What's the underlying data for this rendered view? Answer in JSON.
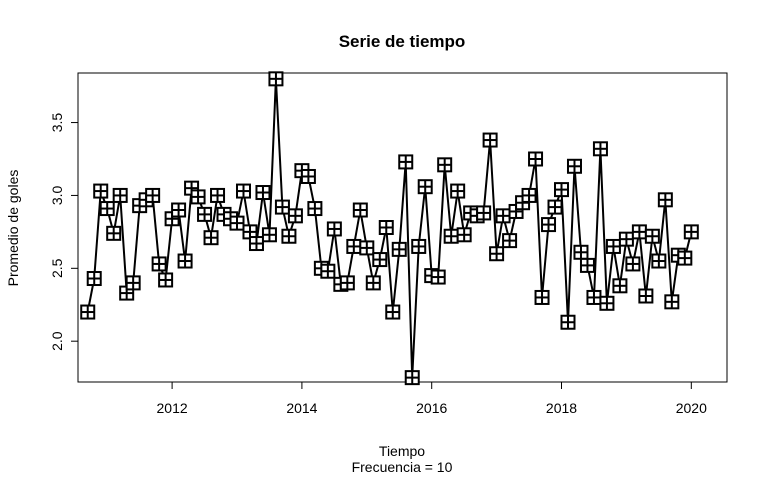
{
  "chart_data": {
    "type": "line",
    "title": "Serie de tiempo",
    "xlabel": "Tiempo",
    "sublabel": "Frecuencia = 10",
    "ylabel": "Promedio de goles",
    "xlim": [
      2010.55,
      2020.55
    ],
    "ylim": [
      1.72,
      3.84
    ],
    "x_ticks": [
      2012,
      2014,
      2016,
      2018,
      2020
    ],
    "y_ticks": [
      2.0,
      2.5,
      3.0,
      3.5
    ],
    "y_tick_labels": [
      "2.0",
      "2.5",
      "3.0",
      "3.5"
    ],
    "x_start": 2010.7,
    "frequency": 10,
    "marker": "boxed-plus",
    "series": [
      {
        "values": [
          2.2,
          2.43,
          3.03,
          2.91,
          2.74,
          3.0,
          2.33,
          2.4,
          2.93,
          2.97,
          3.0,
          2.53,
          2.42,
          2.84,
          2.9,
          2.55,
          3.05,
          2.99,
          2.87,
          2.71,
          3.0,
          2.87,
          2.84,
          2.81,
          3.03,
          2.75,
          2.67,
          3.02,
          2.73,
          3.8,
          2.92,
          2.72,
          2.86,
          3.17,
          3.13,
          2.91,
          2.5,
          2.48,
          2.77,
          2.39,
          2.4,
          2.65,
          2.9,
          2.64,
          2.4,
          2.56,
          2.78,
          2.2,
          2.63,
          3.23,
          1.75,
          2.65,
          3.06,
          2.45,
          2.44,
          3.21,
          2.72,
          3.03,
          2.73,
          2.88,
          2.86,
          2.88,
          3.38,
          2.6,
          2.86,
          2.69,
          2.89,
          2.95,
          3.0,
          3.25,
          2.3,
          2.8,
          2.92,
          3.04,
          2.13,
          3.2,
          2.61,
          2.52,
          2.3,
          3.32,
          2.26,
          2.65,
          2.38,
          2.7,
          2.53,
          2.75,
          2.31,
          2.72,
          2.55,
          2.97,
          2.27,
          2.59,
          2.57,
          2.75
        ]
      }
    ]
  }
}
